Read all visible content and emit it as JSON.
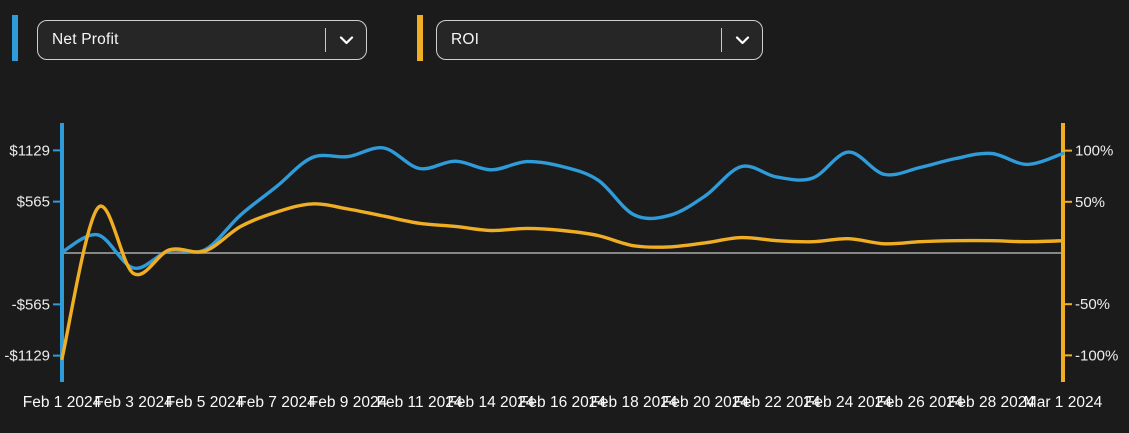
{
  "page": {
    "background": "#1b1b1b"
  },
  "selectors": [
    {
      "label": "Net Profit",
      "accent_color": "#2f9bd8"
    },
    {
      "label": "ROI",
      "accent_color": "#efae24"
    }
  ],
  "chart_data": {
    "type": "line",
    "title": "",
    "legend_position": "none",
    "grid": "zero-line-only",
    "x_tick_labels": [
      "Feb 1 2024",
      "Feb 3 2024",
      "Feb 5 2024",
      "Feb 7 2024",
      "Feb 9 2024",
      "Feb 11 2024",
      "Feb 14 2024",
      "Feb 16 2024",
      "Feb 18 2024",
      "Feb 20 2024",
      "Feb 22 2024",
      "Feb 24 2024",
      "Feb 26 2024",
      "Feb 28 2024",
      "Mar 1 2024"
    ],
    "left_axis": {
      "name": "Net Profit",
      "color": "#2f9bd8",
      "tick_labels": [
        "$1129",
        "$565",
        "-$565",
        "-$1129"
      ],
      "tick_values": [
        1129,
        565,
        -565,
        -1129
      ],
      "range": [
        -1430,
        1430
      ]
    },
    "right_axis": {
      "name": "ROI",
      "color": "#efae24",
      "tick_labels": [
        "100%",
        "50%",
        "-50%",
        "-100%"
      ],
      "tick_values": [
        100,
        50,
        -50,
        -100
      ],
      "range": [
        -127,
        127
      ]
    },
    "series": [
      {
        "name": "Net Profit",
        "axis": "left",
        "color": "#2f9bd8",
        "values": [
          10,
          200,
          -165,
          25,
          35,
          420,
          730,
          1050,
          1060,
          1155,
          930,
          1010,
          915,
          1005,
          950,
          800,
          420,
          415,
          630,
          950,
          835,
          825,
          1110,
          865,
          940,
          1040,
          1095,
          975,
          1095
        ]
      },
      {
        "name": "ROI",
        "axis": "right",
        "color": "#efae24",
        "values": [
          -103,
          44,
          -20,
          3,
          2,
          26,
          40,
          48,
          43,
          36,
          29,
          26,
          22,
          24,
          22,
          17,
          7,
          6,
          10,
          15,
          12,
          11,
          14,
          9,
          11,
          12,
          12,
          11,
          12
        ]
      }
    ],
    "zero_line_color": "#a9a9a9",
    "ticks_every_n_points": 2
  }
}
